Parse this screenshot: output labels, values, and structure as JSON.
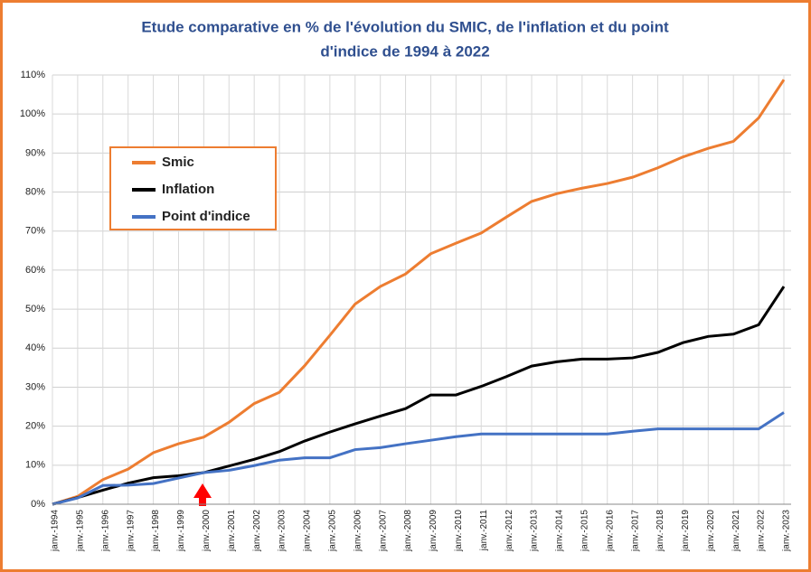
{
  "chart_data": {
    "type": "line",
    "title": [
      "Etude comparative en % de l'évolution du SMIC, de l'inflation et du point",
      "d'indice de 1994 à 2022"
    ],
    "categories": [
      "janv.-1994",
      "janv.-1995",
      "janv.-1996",
      "janv.-1997",
      "janv.-1998",
      "janv.-1999",
      "janv.-2000",
      "janv.-2001",
      "janv.-2002",
      "janv.-2003",
      "janv.-2004",
      "janv.-2005",
      "janv.-2006",
      "janv.-2007",
      "janv.-2008",
      "janv.-2009",
      "janv.-2010",
      "janv.-2011",
      "janv.-2012",
      "janv.-2013",
      "janv.-2014",
      "janv.-2015",
      "janv.-2016",
      "janv.-2017",
      "janv.-2018",
      "janv.-2019",
      "janv.-2020",
      "janv.-2021",
      "janv.-2022",
      "janv.-2023"
    ],
    "series": [
      {
        "name": "Smic",
        "color": "#ed7d31",
        "values": [
          0,
          2,
          6.3,
          9,
          13.2,
          15.5,
          17.2,
          21,
          25.8,
          28.7,
          35.5,
          43.3,
          51.3,
          55.8,
          59,
          64.2,
          66.9,
          69.5,
          73.6,
          77.6,
          79.6,
          81,
          82.2,
          83.8,
          86.2,
          89,
          91.2,
          93,
          99,
          108.8
        ]
      },
      {
        "name": "Inflation",
        "color": "#000000",
        "values": [
          0,
          1.7,
          3.6,
          5.4,
          6.8,
          7.3,
          8.1,
          9.8,
          11.5,
          13.5,
          16.2,
          18.5,
          20.6,
          22.6,
          24.5,
          28,
          28,
          30.2,
          32.7,
          35.4,
          36.5,
          37.2,
          37.2,
          37.5,
          38.9,
          41.4,
          43,
          43.6,
          46,
          55.8
        ]
      },
      {
        "name": "Point d'indice",
        "color": "#4472c4",
        "values": [
          0,
          1.6,
          4.8,
          4.9,
          5.3,
          6.7,
          8.1,
          8.7,
          9.9,
          11.3,
          11.9,
          11.9,
          14,
          14.5,
          15.5,
          16.4,
          17.3,
          18,
          18,
          18,
          18,
          18,
          18,
          18.7,
          19.3,
          19.3,
          19.3,
          19.3,
          19.3,
          23.5
        ]
      }
    ],
    "ylim": [
      0,
      110
    ],
    "yticks": [
      {
        "value": 0,
        "label": "0%"
      },
      {
        "value": 10,
        "label": "10%"
      },
      {
        "value": 20,
        "label": "20%"
      },
      {
        "value": 30,
        "label": "30%"
      },
      {
        "value": 40,
        "label": "40%"
      },
      {
        "value": 50,
        "label": "50%"
      },
      {
        "value": 60,
        "label": "60%"
      },
      {
        "value": 70,
        "label": "70%"
      },
      {
        "value": 80,
        "label": "80%"
      },
      {
        "value": 90,
        "label": "90%"
      },
      {
        "value": 100,
        "label": "100%"
      },
      {
        "value": 110,
        "label": "110%"
      }
    ],
    "grid": true
  }
}
